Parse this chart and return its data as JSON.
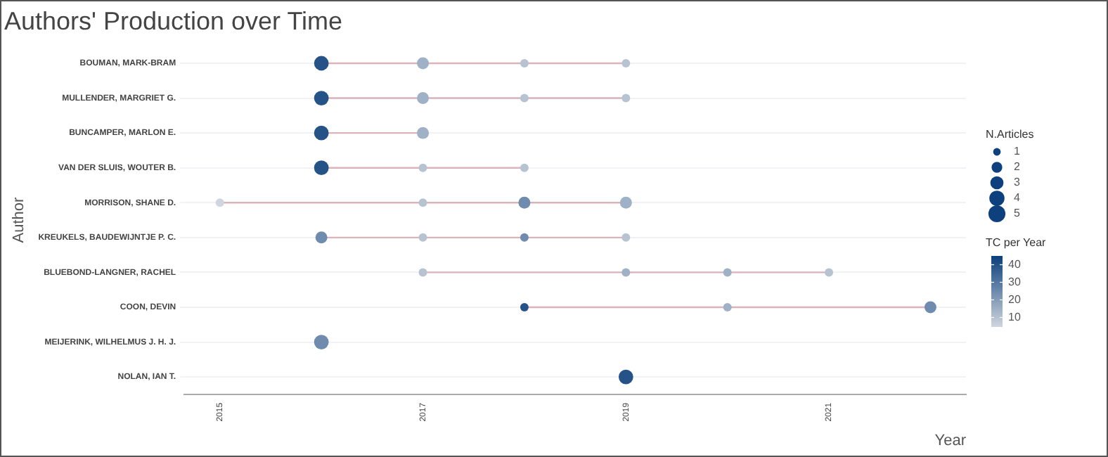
{
  "chart_data": {
    "type": "bubble",
    "orientation": "horizontal",
    "title": "Authors' Production over Time",
    "xlabel": "Year",
    "ylabel": "Author",
    "legend_title": "N.Articles",
    "clabel": "TC per Year",
    "categories": [
      "BOUMAN, MARK-BRAM",
      "MULLENDER, MARGRIET G.",
      "BUNCAMPER, MARLON E.",
      "VAN DER SLUIS, WOUTER B.",
      "MORRISON, SHANE D.",
      "KREUKELS, BAUDEWIJNTJE P. C.",
      "BLUEBOND-LANGNER, RACHEL",
      "COON, DEVIN",
      "MEIJERINK, WILHELMUS J. H. J.",
      "NOLAN, IAN T."
    ],
    "series": [
      {
        "values": [
          2016,
          2016,
          2016,
          2016,
          2015,
          2016,
          2017,
          2018,
          2016,
          2019
        ],
        "sizes": [
          3,
          3,
          3,
          3,
          1,
          2,
          1,
          1,
          3,
          3
        ],
        "colors": [
          "#255388",
          "#255388",
          "#255388",
          "#255388",
          "#d0d6de",
          "#6f8bad",
          "#b8c3d2",
          "#255388",
          "#6f8bad",
          "#255388"
        ]
      },
      {
        "values": [
          2017,
          2017,
          2017,
          2017,
          2017,
          2017,
          2019,
          2020,
          null,
          null
        ],
        "sizes": [
          2,
          2,
          2,
          1,
          1,
          1,
          1,
          1,
          null,
          null
        ],
        "colors": [
          "#9fb1c6",
          "#9fb1c6",
          "#9fb1c6",
          "#b8c3d2",
          "#b8c3d2",
          "#b8c3d2",
          "#9fb1c6",
          "#9fb1c6",
          null,
          null
        ]
      },
      {
        "values": [
          2018,
          2018,
          null,
          2018,
          2018,
          2018,
          2020,
          2022,
          null,
          null
        ],
        "sizes": [
          1,
          1,
          null,
          1,
          2,
          1,
          1,
          2,
          null,
          null
        ],
        "colors": [
          "#b8c3d2",
          "#b8c3d2",
          null,
          "#b8c3d2",
          "#6f8bad",
          "#6f8bad",
          "#9fb1c6",
          "#6f8bad",
          null,
          null
        ]
      },
      {
        "values": [
          2019,
          2019,
          null,
          null,
          2019,
          2019,
          2021,
          null,
          null,
          null
        ],
        "sizes": [
          1,
          1,
          null,
          null,
          2,
          1,
          1,
          null,
          null,
          null
        ],
        "colors": [
          "#b8c3d2",
          "#b8c3d2",
          null,
          null,
          "#9fb1c6",
          "#b8c3d2",
          "#b8c3d2",
          null,
          null,
          null
        ]
      }
    ],
    "xlim": [
      2014.65,
      2022.35
    ],
    "xticks": [
      2015,
      2017,
      2019,
      2021
    ],
    "size_legend": [
      1,
      2,
      3,
      4,
      5
    ],
    "clim": [
      5,
      45
    ],
    "cticks": [
      10,
      20,
      30,
      40
    ],
    "grid": "y"
  }
}
